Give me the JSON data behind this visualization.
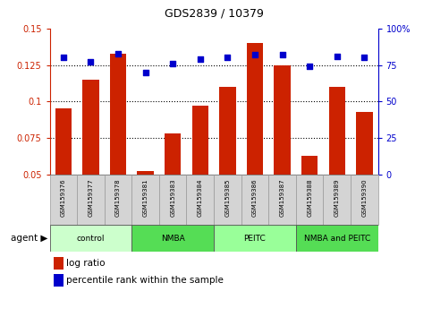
{
  "title": "GDS2839 / 10379",
  "samples": [
    "GSM159376",
    "GSM159377",
    "GSM159378",
    "GSM159381",
    "GSM159383",
    "GSM159384",
    "GSM159385",
    "GSM159386",
    "GSM159387",
    "GSM159388",
    "GSM159389",
    "GSM159390"
  ],
  "log_ratio": [
    0.095,
    0.115,
    0.133,
    0.052,
    0.078,
    0.097,
    0.11,
    0.14,
    0.125,
    0.063,
    0.11,
    0.093
  ],
  "percentile_rank": [
    80,
    77,
    83,
    70,
    76,
    79,
    80,
    82,
    82,
    74,
    81,
    80
  ],
  "groups": [
    {
      "label": "control",
      "start": 0,
      "end": 3,
      "color": "#ccffcc"
    },
    {
      "label": "NMBA",
      "start": 3,
      "end": 6,
      "color": "#55dd55"
    },
    {
      "label": "PEITC",
      "start": 6,
      "end": 9,
      "color": "#99ff99"
    },
    {
      "label": "NMBA and PEITC",
      "start": 9,
      "end": 12,
      "color": "#55dd55"
    }
  ],
  "bar_color": "#cc2200",
  "dot_color": "#0000cc",
  "ylim_left": [
    0.05,
    0.15
  ],
  "ylim_right": [
    0,
    100
  ],
  "yticks_left": [
    0.05,
    0.075,
    0.1,
    0.125,
    0.15
  ],
  "yticks_right": [
    0,
    25,
    50,
    75,
    100
  ],
  "ytick_labels_left": [
    "0.05",
    "0.075",
    "0.1",
    "0.125",
    "0.15"
  ],
  "ytick_labels_right": [
    "0",
    "25",
    "50",
    "75",
    "100%"
  ],
  "grid_dotted_at": [
    0.075,
    0.1,
    0.125
  ],
  "tick_color_left": "#cc2200",
  "tick_color_right": "#0000cc",
  "legend_bar_label": "log ratio",
  "legend_dot_label": "percentile rank within the sample",
  "agent_label": "agent"
}
